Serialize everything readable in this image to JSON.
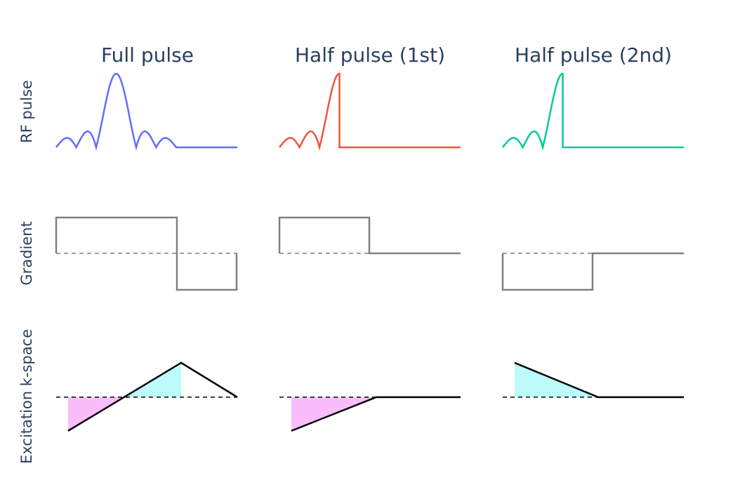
{
  "columns": [
    {
      "title": "Full pulse",
      "color": "#636efa"
    },
    {
      "title": "Half pulse (1st)",
      "color": "#ef553b"
    },
    {
      "title": "Half pulse (2nd)",
      "color": "#00cc96"
    }
  ],
  "rows": [
    {
      "label": "RF pulse"
    },
    {
      "label": "Gradient"
    },
    {
      "label": "Excitation k-space"
    }
  ],
  "colors": {
    "gradient_line": "#808080",
    "kspace_line": "#000000",
    "fill_negative": "#f9bdfb",
    "fill_positive": "#bdfbfb",
    "text": "#2a3f5f"
  },
  "chart_data": [
    {
      "type": "line",
      "panel": "rf-full",
      "xlim": [
        0,
        1
      ],
      "series": [
        {
          "x": [
            0,
            0.5,
            0.66,
            1
          ],
          "shape": "sinc-full-then-zero"
        }
      ]
    },
    {
      "type": "line",
      "panel": "rf-half-1st",
      "shape": "sinc-half-truncated-then-zero"
    },
    {
      "type": "line",
      "panel": "rf-half-2nd",
      "shape": "sinc-half-truncated-then-zero"
    },
    {
      "type": "line",
      "panel": "gradient-full",
      "x": [
        0,
        0.66,
        0.66,
        1
      ],
      "y": [
        1,
        1,
        -1,
        -1
      ]
    },
    {
      "type": "line",
      "panel": "gradient-half-1st",
      "x": [
        0,
        0.5,
        0.5,
        1
      ],
      "y": [
        1,
        1,
        0,
        0
      ]
    },
    {
      "type": "line",
      "panel": "gradient-half-2nd",
      "x": [
        0,
        0.5,
        0.5,
        1
      ],
      "y": [
        -1,
        -1,
        0,
        0
      ]
    },
    {
      "type": "line",
      "panel": "kspace-full",
      "x": [
        0.07,
        0.69,
        1
      ],
      "y": [
        -1,
        1,
        0
      ]
    },
    {
      "type": "line",
      "panel": "kspace-half-1st",
      "x": [
        0.07,
        0.53,
        1
      ],
      "y": [
        -1,
        0,
        0
      ]
    },
    {
      "type": "line",
      "panel": "kspace-half-2nd",
      "x": [
        0.07,
        0.53,
        1
      ],
      "y": [
        1,
        0,
        0
      ]
    }
  ]
}
